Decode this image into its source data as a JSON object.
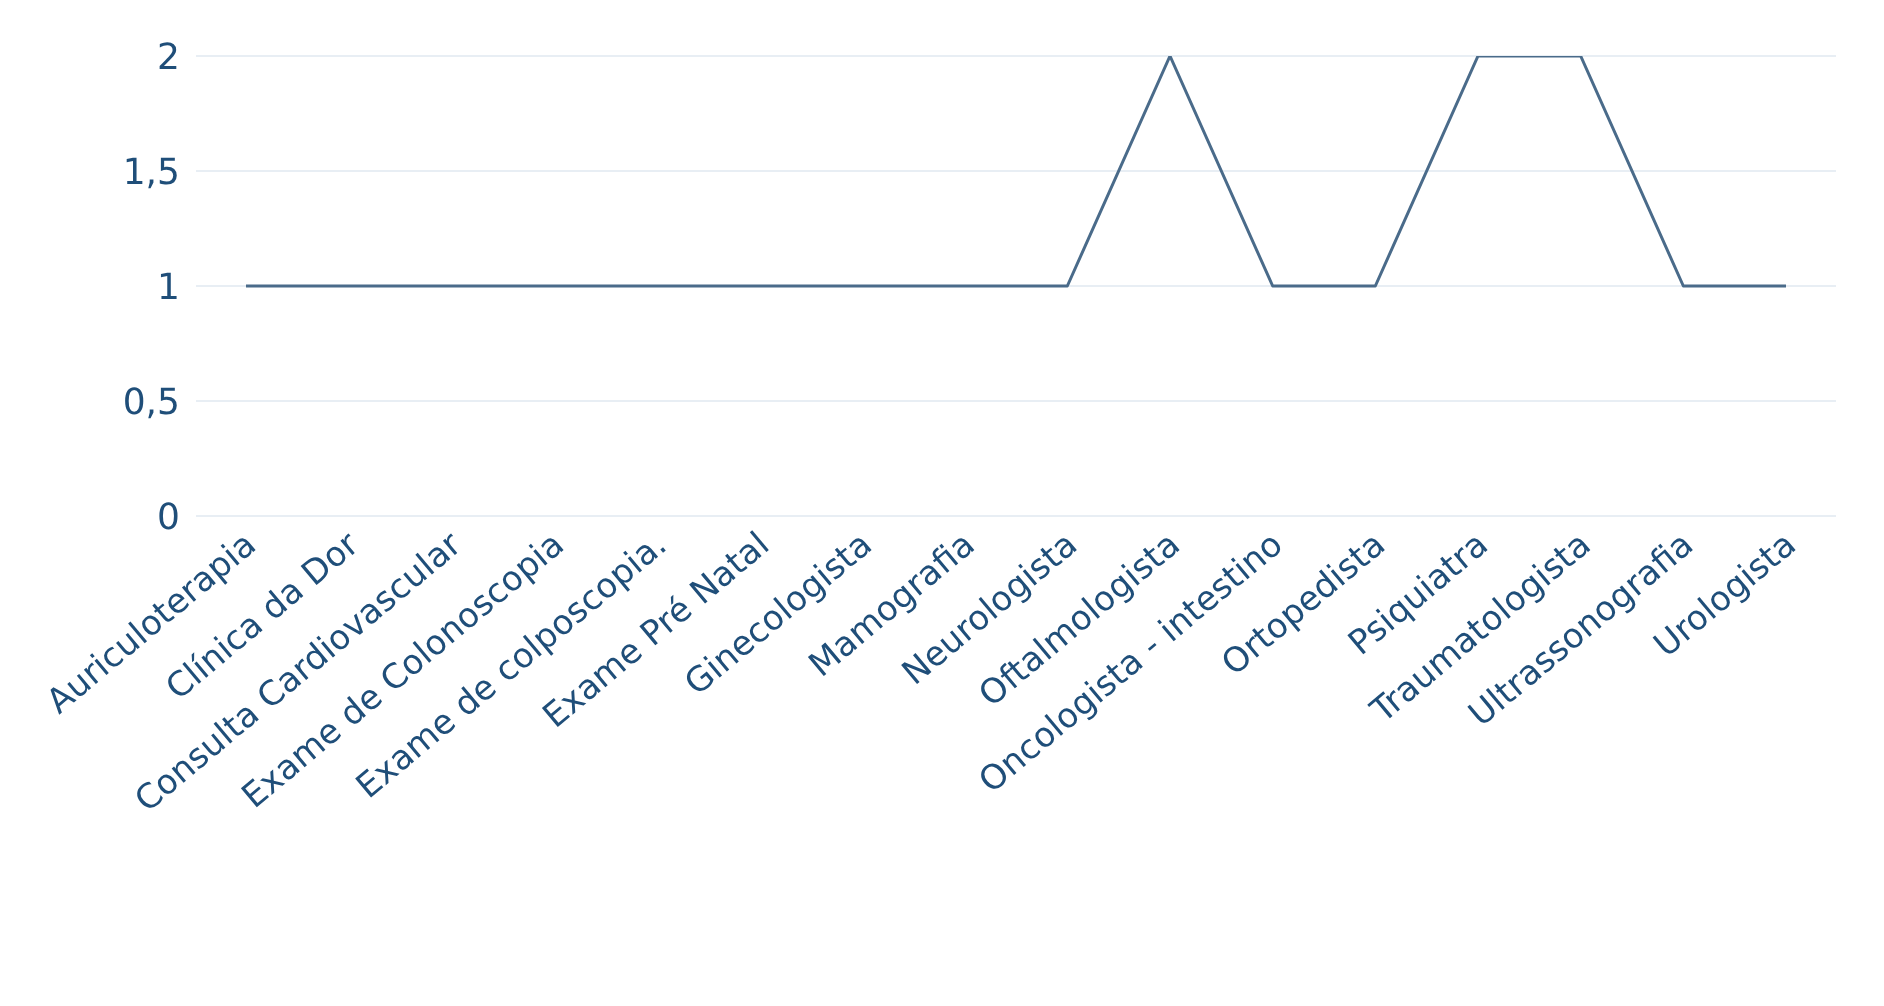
{
  "chart_data": {
    "type": "line",
    "categories": [
      "Auriculoterapia",
      "Clínica da Dor",
      "Consulta Cardiovascular",
      "Exame de Colonoscopia",
      "Exame de colposcopia.",
      "Exame Pré Natal",
      "Ginecologista",
      "Mamografia",
      "Neurologista",
      "Oftalmologista",
      "Oncologista - intestino",
      "Ortopedista",
      "Psiquiatra",
      "Traumatologista",
      "Ultrassonografia",
      "Urologista"
    ],
    "series": [
      {
        "color": "#4a6b8a",
        "values": [
          1,
          1,
          1,
          1,
          1,
          1,
          1,
          1,
          1,
          2,
          1,
          1,
          2,
          2,
          1,
          1
        ]
      }
    ],
    "ylim": [
      0,
      2
    ],
    "yticks": [
      0,
      {
        "value": 0.5,
        "label": "0,5"
      },
      1,
      {
        "value": 1.5,
        "label": "1,5"
      },
      2
    ],
    "grid": "y",
    "legend": false,
    "marker": "none",
    "line_style": "solid"
  }
}
